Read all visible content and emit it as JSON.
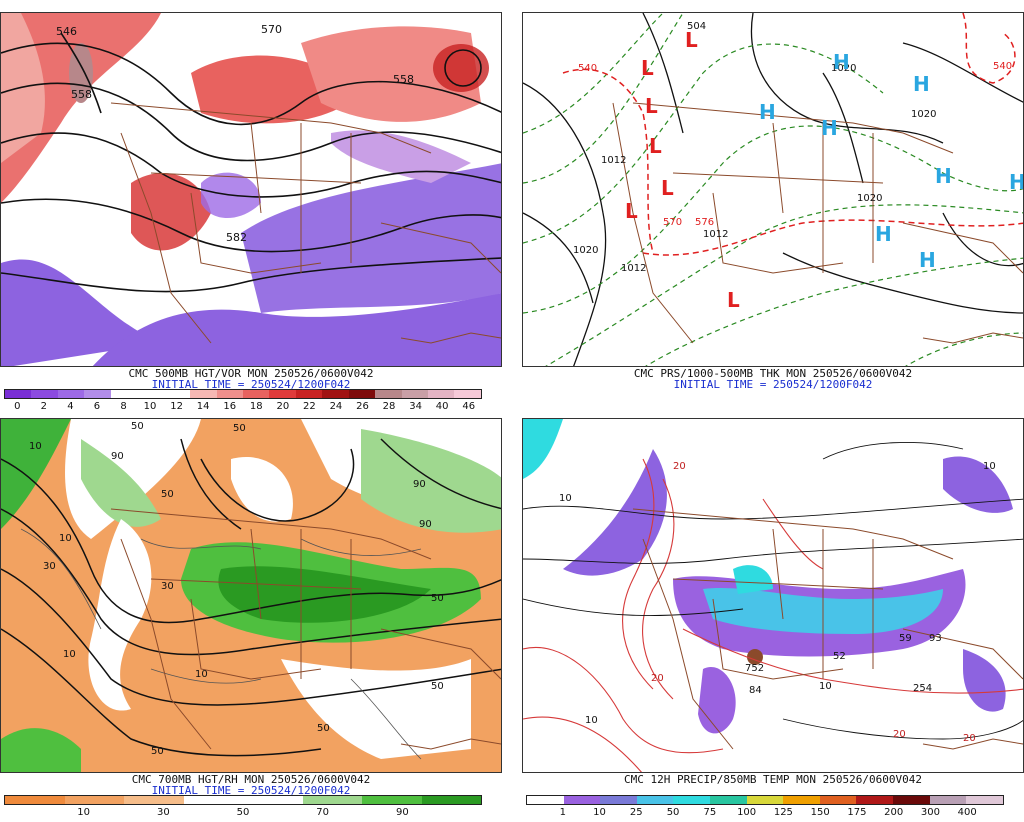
{
  "panels": [
    {
      "id": "vort",
      "caption_line1": "CMC 500MB HGT/VOR MON 250526/0600V042",
      "caption_line2": "INITIAL TIME = 250524/1200F042",
      "colorbar": {
        "colors": [
          "#7a2fd6",
          "#8c4be0",
          "#9d6ae6",
          "#b28de9",
          "#ffffff",
          "#ffffff",
          "#ffffff",
          "#f6b7b3",
          "#ef8f8c",
          "#e8625f",
          "#e03b3b",
          "#c82222",
          "#a11212",
          "#7e0b0b",
          "#b7878a",
          "#c99fa6",
          "#e4b4c4",
          "#f6c9d8"
        ],
        "tick_labels": [
          "0",
          "2",
          "4",
          "6",
          "8",
          "10",
          "12",
          "14",
          "16",
          "18",
          "20",
          "22",
          "24",
          "26",
          "28",
          "34",
          "40",
          "46"
        ]
      },
      "contour_labels": [
        "546",
        "558",
        "570",
        "558",
        "582"
      ]
    },
    {
      "id": "mslp",
      "caption_line1": "CMC PRS/1000-500MB THK MON 250526/0600V042",
      "caption_line2": "INITIAL TIME = 250524/1200F042",
      "contour_labels": [
        "540",
        "1020",
        "1012",
        "1020",
        "1012",
        "570",
        "576",
        "1012",
        "1020",
        "1020",
        "504",
        "540"
      ],
      "centers": [
        {
          "type": "L",
          "color": "#e02020"
        },
        {
          "type": "L",
          "color": "#e02020"
        },
        {
          "type": "L",
          "color": "#e02020"
        },
        {
          "type": "L",
          "color": "#e02020"
        },
        {
          "type": "L",
          "color": "#e02020"
        },
        {
          "type": "L",
          "color": "#e02020"
        },
        {
          "type": "L",
          "color": "#e02020"
        },
        {
          "type": "H",
          "color": "#2aa6e0"
        },
        {
          "type": "H",
          "color": "#2aa6e0"
        },
        {
          "type": "H",
          "color": "#2aa6e0"
        },
        {
          "type": "H",
          "color": "#2aa6e0"
        },
        {
          "type": "H",
          "color": "#2aa6e0"
        },
        {
          "type": "H",
          "color": "#2aa6e0"
        },
        {
          "type": "H",
          "color": "#2aa6e0"
        },
        {
          "type": "H",
          "color": "#2aa6e0"
        }
      ]
    },
    {
      "id": "rh",
      "caption_line1": "CMC 700MB HGT/RH MON 250526/0600V042",
      "caption_line2": "INITIAL TIME = 250524/1200F042",
      "colorbar": {
        "colors": [
          "#ef8a3c",
          "#f2a261",
          "#f6bd8a",
          "#ffffff",
          "#ffffff",
          "#9fd88f",
          "#4fbf3f",
          "#2a9a22"
        ],
        "tick_labels": [
          "10",
          "30",
          "50",
          "70",
          "90"
        ]
      },
      "contour_labels": [
        "10",
        "50",
        "90",
        "50",
        "10",
        "30",
        "50",
        "90",
        "50",
        "10",
        "50",
        "30",
        "50",
        "10",
        "50",
        "90"
      ]
    },
    {
      "id": "precip",
      "caption_line1": "CMC 12H PRECIP/850MB TEMP MON 250526/0600V042",
      "caption_line2": "",
      "colorbar": {
        "colors": [
          "#ffffff",
          "#9a62e0",
          "#7a7ad8",
          "#49c3e8",
          "#2fdbe0",
          "#28c6a0",
          "#d8d83a",
          "#f0a000",
          "#e06020",
          "#b01818",
          "#6b0a0a",
          "#b9a0b5",
          "#e0c8d8"
        ],
        "tick_labels": [
          "1",
          "10",
          "25",
          "50",
          "75",
          "100",
          "125",
          "150",
          "175",
          "200",
          "300",
          "400"
        ]
      },
      "contour_labels": [
        "20",
        "10",
        "20",
        "10",
        "20",
        "10",
        "20",
        "10"
      ],
      "amount_labels": [
        "752",
        "84",
        "254",
        "52",
        "59",
        "93"
      ]
    }
  ]
}
